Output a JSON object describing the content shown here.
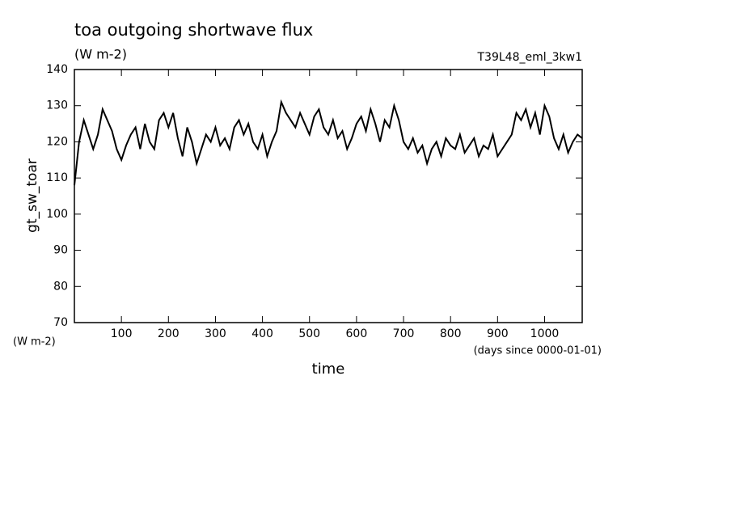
{
  "chart_data": {
    "type": "line",
    "title": "toa outgoing shortwave flux",
    "subtitle": "(W m-2)",
    "annotation": "T39L48_eml_3kw1",
    "ylabel": "gt_sw_toar",
    "yunit": "(W m-2)",
    "xlabel": "time",
    "xunit": "(days since 0000-01-01)",
    "xlim": [
      0,
      1080
    ],
    "ylim": [
      70,
      140
    ],
    "xticks": [
      100,
      200,
      300,
      400,
      500,
      600,
      700,
      800,
      900,
      1000
    ],
    "yticks": [
      70,
      80,
      90,
      100,
      110,
      120,
      130,
      140
    ],
    "color": "#000000",
    "x": [
      0,
      10,
      20,
      30,
      40,
      50,
      60,
      70,
      80,
      90,
      100,
      110,
      120,
      130,
      140,
      150,
      160,
      170,
      180,
      190,
      200,
      210,
      220,
      230,
      240,
      250,
      260,
      270,
      280,
      290,
      300,
      310,
      320,
      330,
      340,
      350,
      360,
      370,
      380,
      390,
      400,
      410,
      420,
      430,
      440,
      450,
      460,
      470,
      480,
      490,
      500,
      510,
      520,
      530,
      540,
      550,
      560,
      570,
      580,
      590,
      600,
      610,
      620,
      630,
      640,
      650,
      660,
      670,
      680,
      690,
      700,
      710,
      720,
      730,
      740,
      750,
      760,
      770,
      780,
      790,
      800,
      810,
      820,
      830,
      840,
      850,
      860,
      870,
      880,
      890,
      900,
      910,
      920,
      930,
      940,
      950,
      960,
      970,
      980,
      990,
      1000,
      1010,
      1020,
      1030,
      1040,
      1050,
      1060,
      1070,
      1080
    ],
    "values": [
      108,
      120,
      126,
      122,
      118,
      122,
      129,
      126,
      123,
      118,
      115,
      119,
      122,
      124,
      118,
      125,
      120,
      118,
      126,
      128,
      124,
      128,
      121,
      116,
      124,
      120,
      114,
      118,
      122,
      120,
      124,
      119,
      121,
      118,
      124,
      126,
      122,
      125,
      120,
      118,
      122,
      116,
      120,
      123,
      131,
      128,
      126,
      124,
      128,
      125,
      122,
      127,
      129,
      124,
      122,
      126,
      121,
      123,
      118,
      121,
      125,
      127,
      123,
      129,
      125,
      120,
      126,
      124,
      130,
      126,
      120,
      118,
      121,
      117,
      119,
      114,
      118,
      120,
      116,
      121,
      119,
      118,
      122,
      117,
      119,
      121,
      116,
      119,
      118,
      122,
      116,
      118,
      120,
      122,
      128,
      126,
      129,
      124,
      128,
      122,
      130,
      127,
      121,
      118,
      122,
      117,
      120,
      122,
      121
    ]
  }
}
